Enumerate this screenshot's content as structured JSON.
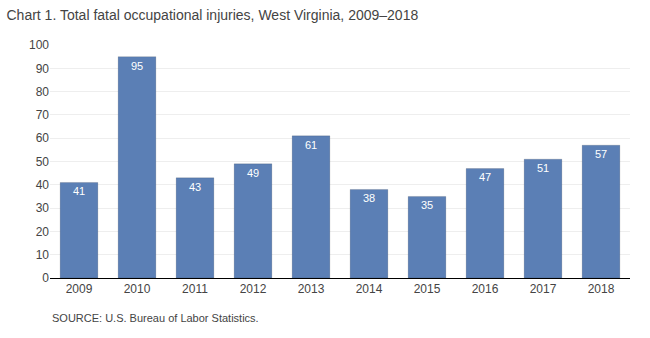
{
  "chart_data": {
    "type": "bar",
    "title": "Chart 1. Total fatal occupational injuries, West Virginia, 2009–2018",
    "categories": [
      "2009",
      "2010",
      "2011",
      "2012",
      "2013",
      "2014",
      "2015",
      "2016",
      "2017",
      "2018"
    ],
    "values": [
      41,
      95,
      43,
      49,
      61,
      38,
      35,
      47,
      51,
      57
    ],
    "color": "#5b7fb5",
    "ylim": [
      0,
      100
    ],
    "yticks": [
      0,
      10,
      20,
      30,
      40,
      50,
      60,
      70,
      80,
      90,
      100
    ],
    "grid": true,
    "data_labels": true,
    "annotations": [
      "SOURCE: U.S. Bureau of Labor Statistics."
    ]
  }
}
